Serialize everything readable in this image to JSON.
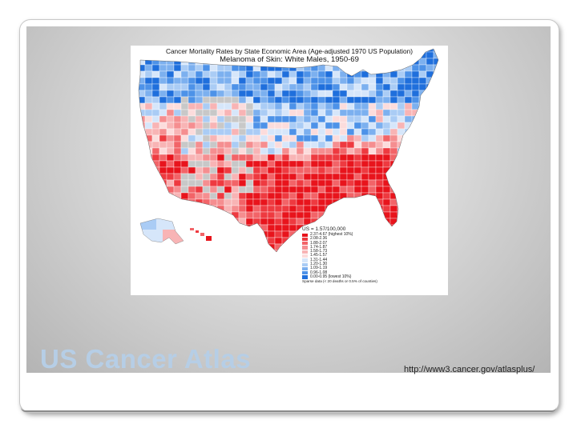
{
  "slide": {
    "title": "US Cancer Atlas",
    "source_url": "http://www3.cancer.gov/atlasplus/"
  },
  "map": {
    "title": "Cancer Mortality Rates by State Economic Area (Age-adjusted 1970 US Population)",
    "subtitle": "Melanoma of Skin: White Males, 1950-69",
    "region": "United States (contiguous), Alaska, Hawaii",
    "legend": {
      "header": "US = 1.57/100,000",
      "classes": [
        {
          "label": "2.37-4.67 (highest 10%)",
          "color": "#e8141c"
        },
        {
          "label": "2.08-2.36",
          "color": "#ee3a40"
        },
        {
          "label": "1.88-2.07",
          "color": "#f26468"
        },
        {
          "label": "1.74-1.87",
          "color": "#f58e90"
        },
        {
          "label": "1.58-1.73",
          "color": "#f8b4b5"
        },
        {
          "label": "1.45-1.57",
          "color": "#fcdcdc"
        },
        {
          "label": "1.31-1.44",
          "color": "#d6e6fa"
        },
        {
          "label": "1.20-1.30",
          "color": "#aaccf5"
        },
        {
          "label": "1.09-1.19",
          "color": "#7cb0ef"
        },
        {
          "label": "0.96-1.08",
          "color": "#4d92e8"
        },
        {
          "label": "0.00-0.95 (lowest 10%)",
          "color": "#1f6fdc"
        }
      ],
      "footer": "Sparse data (< 20 deaths or 0.5% of counties)",
      "sparse_color": "#c8c8c8"
    },
    "colors": {
      "high": "#e8141c",
      "low": "#1f6fdc",
      "sparse": "#c8c8c8",
      "border": "#ffffff"
    }
  }
}
